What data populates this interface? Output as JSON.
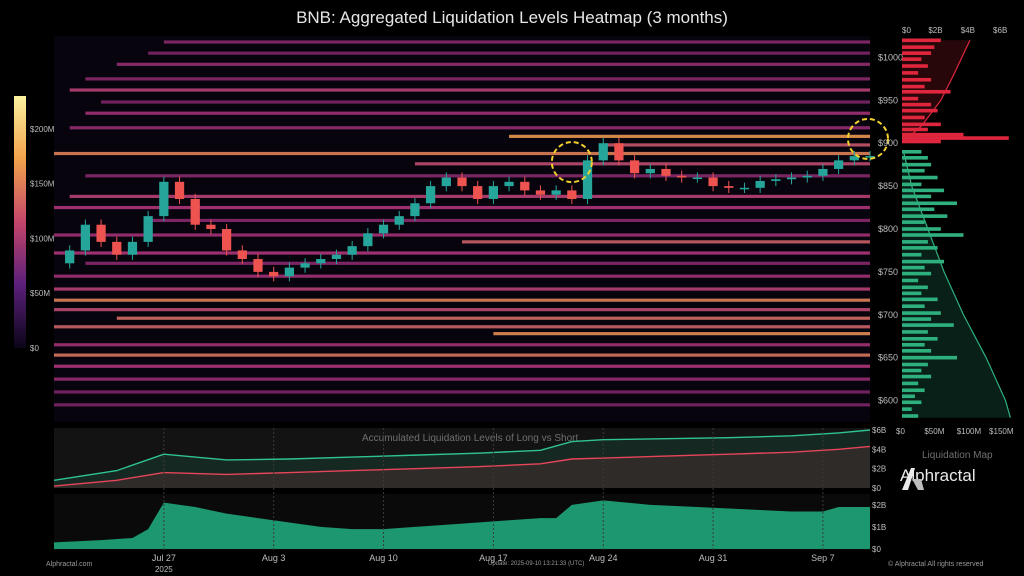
{
  "title": "BNB: Aggregated Liquidation Levels Heatmap (3 months)",
  "brand_name": "Alphractal",
  "footer": {
    "left": "Alphractal.com",
    "update": "Update: 2025-09-10 13:21:33 (UTC)",
    "right": "© Alphractal All rights reserved"
  },
  "colors": {
    "background": "#000000",
    "heat_low": "#2b0f4a",
    "heat_mid": "#b0357a",
    "heat_high": "#f2a24a",
    "short_bars": "#e0263e",
    "long_bars": "#2fb07e",
    "long_line": "#30c392",
    "short_line": "#e6455a",
    "area_fill": "#1fa67a",
    "candle_up": "#26a69a",
    "candle_down": "#ef5350",
    "highlight": "#f2d12f"
  },
  "chart_data": [
    {
      "type": "heatmap",
      "name": "main",
      "x_tick_labels": [
        "Jul 27",
        "Aug 3",
        "Aug 10",
        "Aug 17",
        "Aug 24",
        "Aug 31",
        "Sep 7"
      ],
      "x_sub_label": "2025",
      "x_start": "2025-07-20",
      "x_end": "2025-09-10",
      "y_tick_labels": [
        "$1000",
        "$950",
        "$900",
        "$850",
        "$800",
        "$750",
        "$700",
        "$650",
        "$600"
      ],
      "ylim": [
        575,
        1025
      ],
      "colorbar": {
        "labels": [
          "$200M",
          "$150M",
          "$100M",
          "$50M",
          "$0"
        ],
        "range": [
          0,
          230000000
        ]
      },
      "bands": [
        {
          "price": 1018,
          "start": "2025-07-27",
          "intensity": 0.35
        },
        {
          "price": 1005,
          "start": "2025-07-26",
          "intensity": 0.3
        },
        {
          "price": 992,
          "start": "2025-07-24",
          "intensity": 0.4
        },
        {
          "price": 975,
          "start": "2025-07-22",
          "intensity": 0.35
        },
        {
          "price": 962,
          "start": "2025-07-21",
          "intensity": 0.55
        },
        {
          "price": 948,
          "start": "2025-07-23",
          "intensity": 0.3
        },
        {
          "price": 935,
          "start": "2025-07-22",
          "intensity": 0.45
        },
        {
          "price": 918,
          "start": "2025-07-21",
          "intensity": 0.4
        },
        {
          "price": 908,
          "start": "2025-08-18",
          "intensity": 0.95
        },
        {
          "price": 898,
          "start": "2025-08-24",
          "intensity": 0.65
        },
        {
          "price": 888,
          "start": "2025-07-20",
          "intensity": 0.85
        },
        {
          "price": 876,
          "start": "2025-08-12",
          "intensity": 0.6
        },
        {
          "price": 862,
          "start": "2025-07-22",
          "intensity": 0.35
        },
        {
          "price": 838,
          "start": "2025-07-21",
          "intensity": 0.55
        },
        {
          "price": 825,
          "start": "2025-07-20",
          "intensity": 0.5
        },
        {
          "price": 810,
          "start": "2025-07-26",
          "intensity": 0.35
        },
        {
          "price": 793,
          "start": "2025-07-20",
          "intensity": 0.45
        },
        {
          "price": 785,
          "start": "2025-08-15",
          "intensity": 0.7
        },
        {
          "price": 772,
          "start": "2025-07-20",
          "intensity": 0.5
        },
        {
          "price": 760,
          "start": "2025-07-22",
          "intensity": 0.35
        },
        {
          "price": 745,
          "start": "2025-07-20",
          "intensity": 0.45
        },
        {
          "price": 730,
          "start": "2025-07-20",
          "intensity": 0.55
        },
        {
          "price": 717,
          "start": "2025-07-20",
          "intensity": 0.85
        },
        {
          "price": 706,
          "start": "2025-07-20",
          "intensity": 0.6
        },
        {
          "price": 696,
          "start": "2025-07-24",
          "intensity": 0.75
        },
        {
          "price": 686,
          "start": "2025-07-20",
          "intensity": 0.7
        },
        {
          "price": 678,
          "start": "2025-08-17",
          "intensity": 0.9
        },
        {
          "price": 665,
          "start": "2025-07-20",
          "intensity": 0.45
        },
        {
          "price": 653,
          "start": "2025-07-20",
          "intensity": 0.8
        },
        {
          "price": 640,
          "start": "2025-07-20",
          "intensity": 0.5
        },
        {
          "price": 625,
          "start": "2025-07-20",
          "intensity": 0.4
        },
        {
          "price": 610,
          "start": "2025-07-20",
          "intensity": 0.3
        },
        {
          "price": 595,
          "start": "2025-07-20",
          "intensity": 0.3
        }
      ],
      "price_series": {
        "dates": [
          "2025-07-20",
          "2025-07-21",
          "2025-07-22",
          "2025-07-23",
          "2025-07-24",
          "2025-07-25",
          "2025-07-26",
          "2025-07-27",
          "2025-07-28",
          "2025-07-29",
          "2025-07-30",
          "2025-07-31",
          "2025-08-01",
          "2025-08-02",
          "2025-08-03",
          "2025-08-04",
          "2025-08-05",
          "2025-08-06",
          "2025-08-07",
          "2025-08-08",
          "2025-08-09",
          "2025-08-10",
          "2025-08-11",
          "2025-08-12",
          "2025-08-13",
          "2025-08-14",
          "2025-08-15",
          "2025-08-16",
          "2025-08-17",
          "2025-08-18",
          "2025-08-19",
          "2025-08-20",
          "2025-08-21",
          "2025-08-22",
          "2025-08-23",
          "2025-08-24",
          "2025-08-25",
          "2025-08-26",
          "2025-08-27",
          "2025-08-28",
          "2025-08-29",
          "2025-08-30",
          "2025-08-31",
          "2025-09-01",
          "2025-09-02",
          "2025-09-03",
          "2025-09-04",
          "2025-09-05",
          "2025-09-06",
          "2025-09-07",
          "2025-09-08",
          "2025-09-09",
          "2025-09-10"
        ],
        "close": [
          760,
          775,
          805,
          785,
          770,
          785,
          815,
          855,
          835,
          805,
          800,
          775,
          765,
          750,
          745,
          755,
          760,
          765,
          770,
          780,
          795,
          805,
          815,
          830,
          850,
          860,
          850,
          835,
          850,
          855,
          845,
          840,
          845,
          835,
          880,
          900,
          880,
          865,
          870,
          862,
          860,
          860,
          850,
          848,
          848,
          856,
          858,
          860,
          862,
          870,
          880,
          885,
          885
        ]
      },
      "highlights": [
        {
          "date": "2025-08-22",
          "price": 878
        },
        {
          "date": "2025-09-10",
          "price": 905
        }
      ]
    },
    {
      "type": "bar",
      "name": "liquidation_map",
      "title": "Liquidation Map",
      "orientation": "horizontal",
      "top_axis_labels": [
        "$0",
        "$2B",
        "$4B",
        "$6B"
      ],
      "bottom_axis_labels": [
        "$0",
        "$50M",
        "$100M",
        "$150M"
      ],
      "short_bars": [
        {
          "price": 1020,
          "value": 60
        },
        {
          "price": 1012,
          "value": 50
        },
        {
          "price": 1005,
          "value": 45
        },
        {
          "price": 998,
          "value": 30
        },
        {
          "price": 990,
          "value": 40
        },
        {
          "price": 982,
          "value": 25
        },
        {
          "price": 974,
          "value": 45
        },
        {
          "price": 966,
          "value": 35
        },
        {
          "price": 960,
          "value": 75
        },
        {
          "price": 952,
          "value": 25
        },
        {
          "price": 945,
          "value": 45
        },
        {
          "price": 938,
          "value": 55
        },
        {
          "price": 930,
          "value": 35
        },
        {
          "price": 922,
          "value": 60
        },
        {
          "price": 916,
          "value": 40
        },
        {
          "price": 910,
          "value": 95
        },
        {
          "price": 906,
          "value": 165
        },
        {
          "price": 902,
          "value": 60
        }
      ],
      "long_bars": [
        {
          "price": 890,
          "value": 30
        },
        {
          "price": 883,
          "value": 40
        },
        {
          "price": 875,
          "value": 45
        },
        {
          "price": 868,
          "value": 35
        },
        {
          "price": 860,
          "value": 55
        },
        {
          "price": 852,
          "value": 30
        },
        {
          "price": 845,
          "value": 65
        },
        {
          "price": 838,
          "value": 45
        },
        {
          "price": 830,
          "value": 85
        },
        {
          "price": 823,
          "value": 50
        },
        {
          "price": 815,
          "value": 70
        },
        {
          "price": 808,
          "value": 35
        },
        {
          "price": 800,
          "value": 60
        },
        {
          "price": 793,
          "value": 95
        },
        {
          "price": 785,
          "value": 40
        },
        {
          "price": 778,
          "value": 55
        },
        {
          "price": 770,
          "value": 30
        },
        {
          "price": 762,
          "value": 65
        },
        {
          "price": 755,
          "value": 35
        },
        {
          "price": 748,
          "value": 45
        },
        {
          "price": 740,
          "value": 25
        },
        {
          "price": 732,
          "value": 40
        },
        {
          "price": 725,
          "value": 30
        },
        {
          "price": 718,
          "value": 55
        },
        {
          "price": 710,
          "value": 35
        },
        {
          "price": 702,
          "value": 60
        },
        {
          "price": 695,
          "value": 45
        },
        {
          "price": 688,
          "value": 80
        },
        {
          "price": 680,
          "value": 40
        },
        {
          "price": 672,
          "value": 55
        },
        {
          "price": 665,
          "value": 35
        },
        {
          "price": 658,
          "value": 45
        },
        {
          "price": 650,
          "value": 85
        },
        {
          "price": 642,
          "value": 40
        },
        {
          "price": 635,
          "value": 30
        },
        {
          "price": 628,
          "value": 45
        },
        {
          "price": 620,
          "value": 25
        },
        {
          "price": 612,
          "value": 35
        },
        {
          "price": 605,
          "value": 20
        },
        {
          "price": 598,
          "value": 30
        },
        {
          "price": 590,
          "value": 15
        },
        {
          "price": 582,
          "value": 25
        }
      ],
      "cumulative_short": [
        [
          902,
          0.1
        ],
        [
          920,
          1.2
        ],
        [
          950,
          2.4
        ],
        [
          980,
          3.2
        ],
        [
          1020,
          4.2
        ]
      ],
      "cumulative_long": [
        [
          890,
          0.1
        ],
        [
          850,
          0.6
        ],
        [
          800,
          1.6
        ],
        [
          750,
          2.6
        ],
        [
          700,
          3.8
        ],
        [
          650,
          5.2
        ],
        [
          600,
          6.4
        ],
        [
          580,
          6.7
        ]
      ]
    },
    {
      "type": "line",
      "name": "accumulated",
      "title": "Accumulated Liquidation Levels of Long vs Short",
      "y_tick_labels": [
        "$6B",
        "$4B",
        "$2B",
        "$0"
      ],
      "ylim": [
        0,
        6
      ],
      "x": [
        "2025-07-20",
        "2025-07-24",
        "2025-07-27",
        "2025-07-31",
        "2025-08-04",
        "2025-08-08",
        "2025-08-12",
        "2025-08-16",
        "2025-08-20",
        "2025-08-22",
        "2025-08-24",
        "2025-08-28",
        "2025-09-01",
        "2025-09-05",
        "2025-09-08",
        "2025-09-10"
      ],
      "series": [
        {
          "key": "long",
          "values": [
            0.8,
            1.8,
            3.5,
            2.9,
            3.0,
            3.2,
            3.4,
            3.6,
            3.9,
            4.8,
            5.0,
            5.1,
            5.2,
            5.4,
            5.7,
            6.0
          ]
        },
        {
          "key": "short",
          "values": [
            0.2,
            0.8,
            1.6,
            1.4,
            1.6,
            1.8,
            2.0,
            2.2,
            2.5,
            3.0,
            3.1,
            3.3,
            3.5,
            3.7,
            4.0,
            4.3
          ]
        }
      ]
    },
    {
      "type": "area",
      "name": "bottom",
      "y_tick_labels": [
        "$2B",
        "$1B",
        "$0"
      ],
      "ylim": [
        0,
        2.4
      ],
      "x": [
        "2025-07-20",
        "2025-07-23",
        "2025-07-25",
        "2025-07-26",
        "2025-07-27",
        "2025-07-29",
        "2025-07-31",
        "2025-08-02",
        "2025-08-04",
        "2025-08-06",
        "2025-08-08",
        "2025-08-10",
        "2025-08-12",
        "2025-08-14",
        "2025-08-16",
        "2025-08-18",
        "2025-08-20",
        "2025-08-21",
        "2025-08-22",
        "2025-08-24",
        "2025-08-27",
        "2025-08-30",
        "2025-09-02",
        "2025-09-05",
        "2025-09-07",
        "2025-09-08",
        "2025-09-10"
      ],
      "values": [
        0.3,
        0.4,
        0.5,
        0.9,
        2.1,
        1.9,
        1.6,
        1.4,
        1.2,
        1.0,
        0.9,
        0.9,
        1.0,
        1.1,
        1.2,
        1.3,
        1.4,
        1.4,
        2.0,
        2.2,
        2.0,
        1.9,
        1.8,
        1.7,
        1.7,
        1.9,
        1.9
      ]
    }
  ]
}
